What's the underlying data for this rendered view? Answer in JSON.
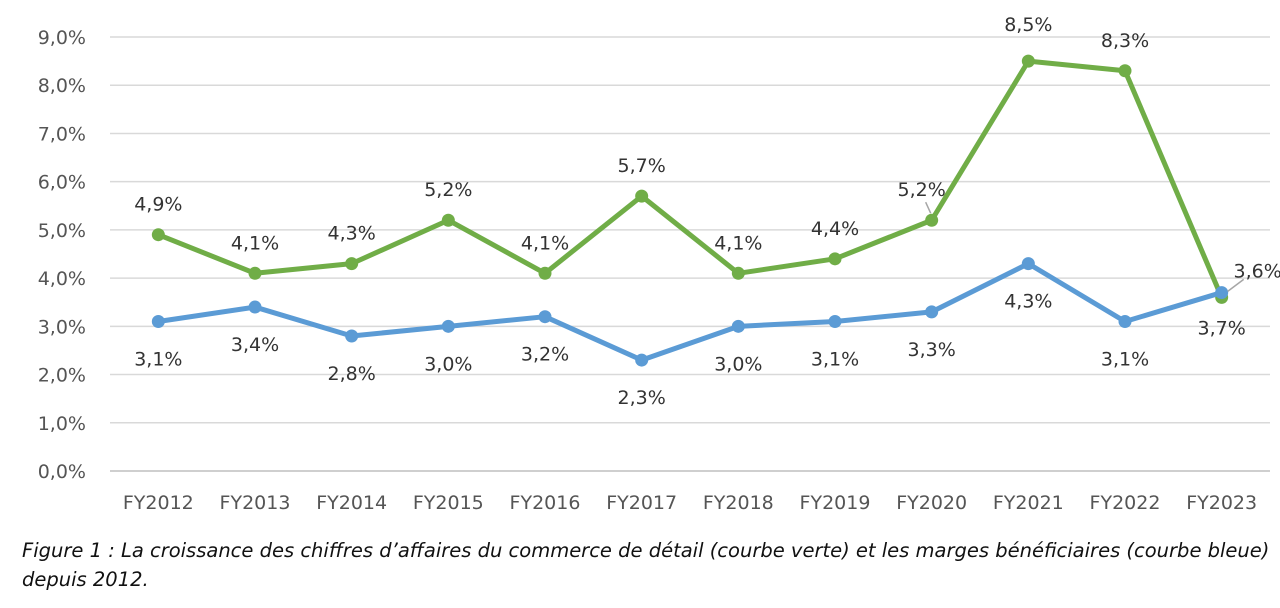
{
  "chart_data": {
    "type": "line",
    "categories": [
      "FY2012",
      "FY2013",
      "FY2014",
      "FY2015",
      "FY2016",
      "FY2017",
      "FY2018",
      "FY2019",
      "FY2020",
      "FY2021",
      "FY2022",
      "FY2023"
    ],
    "series": [
      {
        "color": "#70ad47",
        "values": [
          4.9,
          4.1,
          4.3,
          5.2,
          4.1,
          5.7,
          4.1,
          4.4,
          5.2,
          8.5,
          8.3,
          3.6
        ],
        "labels": [
          "4,9%",
          "4,1%",
          "4,3%",
          "5,2%",
          "4,1%",
          "5,7%",
          "4,1%",
          "4,4%",
          "5,2%",
          "8,5%",
          "8,3%",
          "3,6%"
        ]
      },
      {
        "color": "#5b9bd5",
        "values": [
          3.1,
          3.4,
          2.8,
          3.0,
          3.2,
          2.3,
          3.0,
          3.1,
          3.3,
          4.3,
          3.1,
          3.7
        ],
        "labels": [
          "3,1%",
          "3,4%",
          "2,8%",
          "3,0%",
          "3,2%",
          "2,3%",
          "3,0%",
          "3,1%",
          "3,3%",
          "4,3%",
          "3,1%",
          "3,7%"
        ]
      }
    ],
    "yticks": [
      "0,0%",
      "1,0%",
      "2,0%",
      "3,0%",
      "4,0%",
      "5,0%",
      "6,0%",
      "7,0%",
      "8,0%",
      "9,0%"
    ],
    "ylim": [
      0,
      9
    ],
    "grid": true,
    "legend": "none",
    "title": "",
    "xlabel": "",
    "ylabel": ""
  },
  "caption": "Figure 1 : La croissance des chiffres d’affaires du commerce de détail (courbe verte) et les marges bénéficiaires (courbe bleue) depuis 2012."
}
